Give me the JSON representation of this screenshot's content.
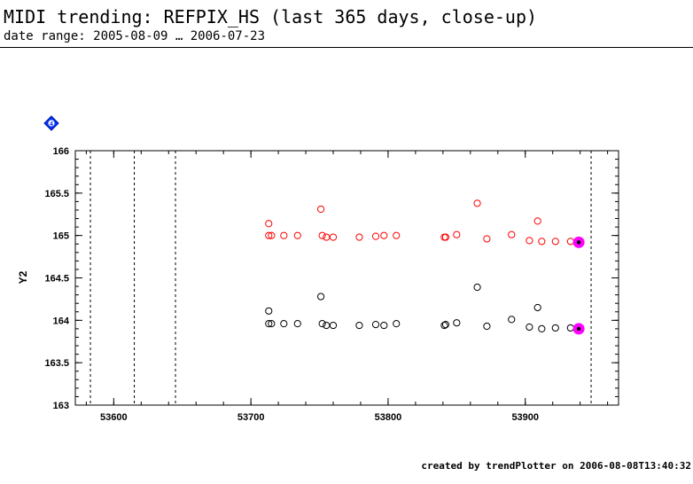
{
  "header": {
    "title": "MIDI trending: REFPIX_HS (last 365 days, close-up)",
    "subtitle": "date range: 2005-08-09 … 2006-07-23"
  },
  "footer": {
    "credit": "created by trendPlotter on 2006-08-08T13:40:32"
  },
  "marker": {
    "label": "4",
    "color": "#0033ff",
    "icon": "diamond-icon"
  },
  "chart_data": {
    "type": "scatter",
    "ylabel": "Y2",
    "xlabel": "",
    "xlim": [
      53572,
      53968
    ],
    "ylim": [
      163,
      166
    ],
    "x_ticks": [
      53600,
      53700,
      53800,
      53900
    ],
    "x_tick_labels": [
      "53600",
      "53700",
      "53800",
      "53900"
    ],
    "y_ticks": [
      163,
      163.5,
      164,
      164.5,
      165,
      165.5,
      166
    ],
    "y_tick_labels": [
      "163",
      "163.5",
      "164",
      "164.5",
      "165",
      "165.5",
      "166"
    ],
    "vertical_markers": [
      53583,
      53615,
      53645,
      53948
    ],
    "highlight_color": "#ff00ff",
    "series": [
      {
        "color": "#ff0000",
        "x": [
          53713,
          53713,
          53715,
          53724,
          53734,
          53751,
          53752,
          53755,
          53760,
          53779,
          53791,
          53797,
          53806,
          53841,
          53842,
          53850,
          53865,
          53872,
          53890,
          53903,
          53909,
          53912,
          53922,
          53933,
          53939
        ],
        "y": [
          165.14,
          165.0,
          165.0,
          165.0,
          165.0,
          165.31,
          165.0,
          164.98,
          164.98,
          164.98,
          164.99,
          165.0,
          165.0,
          164.98,
          164.98,
          165.01,
          165.38,
          164.96,
          165.01,
          164.94,
          165.17,
          164.93,
          164.93,
          164.93,
          164.92
        ],
        "highlight_index": 24
      },
      {
        "color": "#000000",
        "x": [
          53713,
          53713,
          53715,
          53724,
          53734,
          53751,
          53752,
          53755,
          53760,
          53779,
          53791,
          53797,
          53806,
          53841,
          53842,
          53850,
          53865,
          53872,
          53890,
          53903,
          53909,
          53912,
          53922,
          53933,
          53939
        ],
        "y": [
          164.11,
          163.96,
          163.96,
          163.96,
          163.96,
          164.28,
          163.96,
          163.94,
          163.94,
          163.94,
          163.95,
          163.94,
          163.96,
          163.94,
          163.95,
          163.97,
          164.39,
          163.93,
          164.01,
          163.92,
          164.15,
          163.9,
          163.91,
          163.91,
          163.9
        ],
        "highlight_index": 24
      }
    ]
  }
}
